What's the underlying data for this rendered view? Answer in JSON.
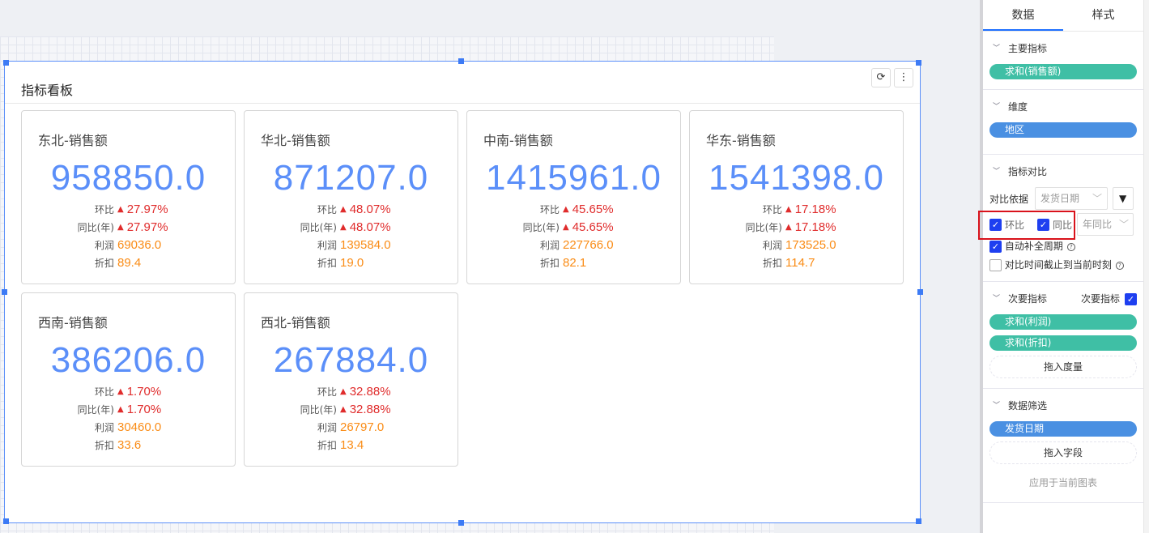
{
  "widget": {
    "title": "指标看板",
    "refresh_icon": "refresh-icon",
    "more_icon": "more-vertical-icon"
  },
  "cards": [
    {
      "title": "东北-销售额",
      "value": "958850.0",
      "mom_label": "环比",
      "mom": "27.97%",
      "yoy_label": "同比(年)",
      "yoy": "27.97%",
      "profit_label": "利润",
      "profit": "69036.0",
      "discount_label": "折扣",
      "discount": "89.4"
    },
    {
      "title": "华北-销售额",
      "value": "871207.0",
      "mom_label": "环比",
      "mom": "48.07%",
      "yoy_label": "同比(年)",
      "yoy": "48.07%",
      "profit_label": "利润",
      "profit": "139584.0",
      "discount_label": "折扣",
      "discount": "19.0"
    },
    {
      "title": "中南-销售额",
      "value": "1415961.0",
      "mom_label": "环比",
      "mom": "45.65%",
      "yoy_label": "同比(年)",
      "yoy": "45.65%",
      "profit_label": "利润",
      "profit": "227766.0",
      "discount_label": "折扣",
      "discount": "82.1"
    },
    {
      "title": "华东-销售额",
      "value": "1541398.0",
      "mom_label": "环比",
      "mom": "17.18%",
      "yoy_label": "同比(年)",
      "yoy": "17.18%",
      "profit_label": "利润",
      "profit": "173525.0",
      "discount_label": "折扣",
      "discount": "114.7"
    },
    {
      "title": "西南-销售额",
      "value": "386206.0",
      "mom_label": "环比",
      "mom": "1.70%",
      "yoy_label": "同比(年)",
      "yoy": "1.70%",
      "profit_label": "利润",
      "profit": "30460.0",
      "discount_label": "折扣",
      "discount": "33.6"
    },
    {
      "title": "西北-销售额",
      "value": "267884.0",
      "mom_label": "环比",
      "mom": "32.88%",
      "yoy_label": "同比(年)",
      "yoy": "32.88%",
      "profit_label": "利润",
      "profit": "26797.0",
      "discount_label": "折扣",
      "discount": "13.4"
    }
  ],
  "panel": {
    "tabs": [
      "数据",
      "样式"
    ],
    "primary": {
      "title": "主要指标",
      "pill": "求和(销售额)"
    },
    "dimension": {
      "title": "维度",
      "pill": "地区"
    },
    "compare": {
      "title": "指标对比",
      "basis_label": "对比依据",
      "basis_value": "发货日期",
      "mom_label": "环比",
      "mom_checked": true,
      "yoy_label": "同比",
      "yoy_checked": true,
      "yoy_type": "年同比",
      "auto_fill_label": "自动补全周期",
      "auto_fill_checked": true,
      "cutoff_label": "对比时间截止到当前时刻",
      "cutoff_checked": false
    },
    "secondary": {
      "title": "次要指标",
      "toggle_label": "次要指标",
      "toggle_checked": true,
      "pills": [
        "求和(利润)",
        "求和(折扣)"
      ],
      "drop": "拖入度量"
    },
    "filter": {
      "title": "数据筛选",
      "pill": "发货日期",
      "drop": "拖入字段",
      "apply": "应用于当前图表"
    }
  },
  "colors": {
    "accent": "#5b8ff9",
    "up": "#e02c2c",
    "secondary_value": "#fa8c16",
    "measure_pill": "#3fbfa5",
    "dimension_pill": "#4a90e2"
  }
}
